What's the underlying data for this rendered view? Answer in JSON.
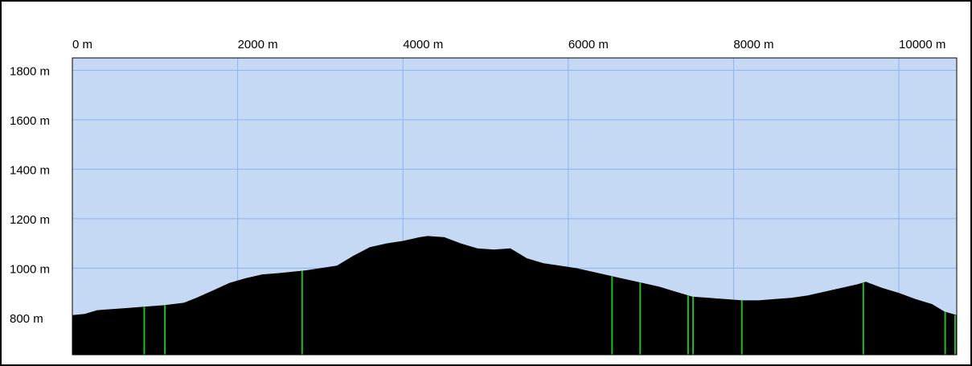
{
  "chart_data": {
    "type": "area",
    "title": "",
    "xlabel": "",
    "ylabel": "",
    "xlim": [
      0,
      10700
    ],
    "ylim": [
      650,
      1850
    ],
    "grid": true,
    "x_ticks": [
      {
        "value": 0,
        "label": "0 m"
      },
      {
        "value": 2000,
        "label": "2000 m"
      },
      {
        "value": 4000,
        "label": "4000 m"
      },
      {
        "value": 6000,
        "label": "6000 m"
      },
      {
        "value": 8000,
        "label": "8000 m"
      },
      {
        "value": 10000,
        "label": "10000 m"
      }
    ],
    "y_ticks": [
      {
        "value": 800,
        "label": "800 m"
      },
      {
        "value": 1000,
        "label": "1000 m"
      },
      {
        "value": 1200,
        "label": "1200 m"
      },
      {
        "value": 1400,
        "label": "1400 m"
      },
      {
        "value": 1600,
        "label": "1600 m"
      },
      {
        "value": 1800,
        "label": "1800 m"
      }
    ],
    "series": [
      {
        "x": [
          0,
          150,
          300,
          500,
          700,
          900,
          1100,
          1350,
          1500,
          1700,
          1900,
          2100,
          2300,
          2500,
          2800,
          3000,
          3200,
          3400,
          3600,
          3800,
          4000,
          4200,
          4300,
          4500,
          4700,
          4900,
          5100,
          5300,
          5400,
          5500,
          5700,
          5900,
          6100,
          6300,
          6500,
          6700,
          6900,
          7100,
          7300,
          7500,
          7700,
          7900,
          8100,
          8300,
          8500,
          8700,
          8900,
          9100,
          9300,
          9500,
          9600,
          9800,
          10000,
          10200,
          10400,
          10550,
          10700
        ],
        "y": [
          810,
          815,
          830,
          835,
          840,
          845,
          850,
          860,
          880,
          910,
          940,
          960,
          975,
          980,
          990,
          1000,
          1010,
          1050,
          1085,
          1100,
          1110,
          1125,
          1130,
          1125,
          1100,
          1080,
          1075,
          1080,
          1060,
          1040,
          1020,
          1010,
          1000,
          985,
          970,
          955,
          940,
          925,
          905,
          885,
          880,
          875,
          870,
          870,
          875,
          880,
          890,
          905,
          920,
          935,
          945,
          920,
          900,
          875,
          855,
          825,
          810
        ]
      }
    ],
    "markers_x": [
      870,
      1120,
      2780,
      6530,
      6870,
      7450,
      7510,
      8100,
      9570,
      10560,
      10700
    ],
    "colors": {
      "plot_background": "#c5d9f5",
      "grid": "#8db2ee",
      "terrain": "#000000",
      "marker": "#22bb22"
    }
  }
}
